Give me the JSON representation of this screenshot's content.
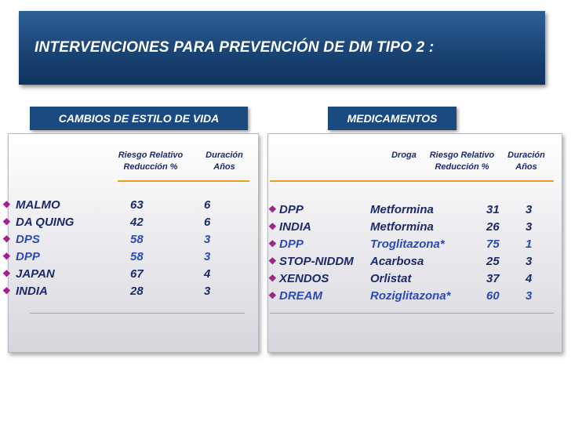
{
  "title": "INTERVENCIONES PARA PREVENCIÓN DE DM TIPO 2 :",
  "left": {
    "label": "CAMBIOS DE ESTILO DE VIDA",
    "headers": {
      "col1_line1": "Riesgo Relativo",
      "col1_line2": "Reducción %",
      "col2_line1": "Duración",
      "col2_line2": "Años"
    },
    "rows": [
      {
        "name": "MALMO",
        "reduction": "63",
        "years": "6",
        "color": "#1a2a6a"
      },
      {
        "name": "DA QUING",
        "reduction": "42",
        "years": "6",
        "color": "#1a2a6a"
      },
      {
        "name": "DPS",
        "reduction": "58",
        "years": "3",
        "color": "#2a4ab8"
      },
      {
        "name": "DPP",
        "reduction": "58",
        "years": "3",
        "color": "#2a4ab8"
      },
      {
        "name": "JAPAN",
        "reduction": "67",
        "years": "4",
        "color": "#1a2a6a"
      },
      {
        "name": "INDIA",
        "reduction": "28",
        "years": "3",
        "color": "#1a2a6a"
      }
    ]
  },
  "right": {
    "label": "MEDICAMENTOS",
    "headers": {
      "drug": "Droga",
      "col1_line1": "Riesgo Relativo",
      "col1_line2": "Reducción %",
      "col2_line1": "Duración",
      "col2_line2": "Años"
    },
    "rows": [
      {
        "name": "DPP",
        "drug": "Metformina",
        "reduction": "31",
        "years": "3",
        "color": "#1a2a6a"
      },
      {
        "name": "INDIA",
        "drug": "Metformina",
        "reduction": "26",
        "years": "3",
        "color": "#1a2a6a"
      },
      {
        "name": "DPP",
        "drug": "Troglitazona*",
        "reduction": "75",
        "years": "1",
        "color": "#2a4ab8"
      },
      {
        "name": "STOP-NIDDM",
        "drug": "Acarbosa",
        "reduction": "25",
        "years": "3",
        "color": "#1a2a6a"
      },
      {
        "name": "XENDOS",
        "drug": "Orlistat",
        "reduction": "37",
        "years": "4",
        "color": "#1a2a6a"
      },
      {
        "name": "DREAM",
        "drug": "Roziglitazona*",
        "reduction": "60",
        "years": "3",
        "color": "#2a4ab8"
      }
    ]
  },
  "bullet_icon": "diamond-bullet-icon",
  "colors": {
    "header_bg": "#184272",
    "accent_line": "#e8a020",
    "bullet": "#a0208a"
  }
}
